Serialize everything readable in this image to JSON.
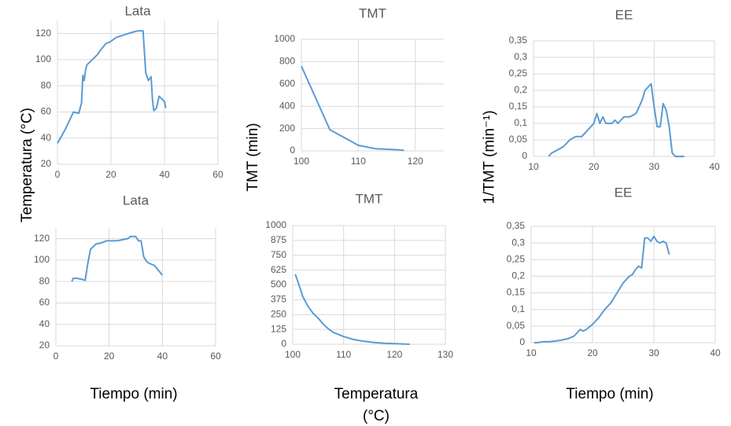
{
  "chart_data": [
    {
      "type": "line",
      "title": "Lata",
      "ylabel": "Temperatura (°C)",
      "color": "#5b9bd5",
      "grid": true,
      "x": [
        0,
        3,
        6,
        8,
        9,
        9.5,
        10,
        10.5,
        11,
        13,
        15,
        16,
        18,
        20,
        22,
        25,
        28,
        30,
        31,
        32,
        33,
        34,
        35,
        35.5,
        36,
        37,
        38,
        40,
        40.5
      ],
      "values": [
        36,
        47,
        60,
        59,
        67,
        88,
        84,
        92,
        96,
        100,
        104,
        107,
        112,
        114,
        117,
        119,
        121,
        122,
        122,
        122,
        90,
        84,
        87,
        70,
        61,
        63,
        72,
        68,
        63
      ],
      "xlim": [
        0,
        60
      ],
      "xticks": [
        0,
        20,
        40,
        60
      ],
      "ylim": [
        20,
        130
      ],
      "yticks": [
        20,
        40,
        60,
        80,
        100,
        120
      ]
    },
    {
      "type": "line",
      "title": "TMT",
      "ylabel": "TMT (min)",
      "color": "#5b9bd5",
      "grid": true,
      "x": [
        100,
        105,
        110,
        113,
        115,
        117,
        118
      ],
      "values": [
        760,
        190,
        50,
        20,
        15,
        10,
        5
      ],
      "xlim": [
        100,
        125
      ],
      "xticks": [
        100,
        110,
        120
      ],
      "ylim": [
        0,
        1000
      ],
      "yticks": [
        0,
        200,
        400,
        600,
        800,
        1000
      ]
    },
    {
      "type": "line",
      "title": "EE",
      "ylabel": "1/TMT (min⁻¹)",
      "color": "#5b9bd5",
      "grid": true,
      "x": [
        12.5,
        13,
        14,
        15,
        16,
        17,
        18,
        19,
        20,
        20.5,
        21,
        21.5,
        22,
        23,
        23.5,
        24,
        25,
        26,
        27,
        28,
        28.5,
        29.5,
        30,
        30.5,
        31,
        31.5,
        32,
        32.5,
        33,
        33.5,
        35
      ],
      "values": [
        0,
        0.01,
        0.02,
        0.03,
        0.05,
        0.06,
        0.06,
        0.08,
        0.1,
        0.13,
        0.1,
        0.12,
        0.1,
        0.1,
        0.11,
        0.1,
        0.12,
        0.12,
        0.13,
        0.17,
        0.2,
        0.22,
        0.15,
        0.09,
        0.09,
        0.16,
        0.14,
        0.09,
        0.01,
        0,
        0
      ],
      "xlim": [
        10,
        40
      ],
      "xticks": [
        10,
        20,
        30,
        40
      ],
      "ylim": [
        0,
        0.35
      ],
      "yticks": [
        0,
        {
          "value": 0.05,
          "label": "0,05"
        },
        {
          "value": 0.1,
          "label": "0,1"
        },
        {
          "value": 0.15,
          "label": "0,15"
        },
        {
          "value": 0.2,
          "label": "0,2"
        },
        {
          "value": 0.25,
          "label": "0,25"
        },
        {
          "value": 0.3,
          "label": "0,3"
        },
        {
          "value": 0.35,
          "label": "0,35"
        }
      ]
    },
    {
      "type": "line",
      "title": "Lata",
      "xlabel": "Tiempo (min)",
      "color": "#5b9bd5",
      "grid": true,
      "x": [
        6,
        6.5,
        8,
        10,
        11,
        12,
        13,
        15,
        17,
        19,
        21,
        23,
        25,
        27,
        28,
        30,
        31,
        32,
        33,
        34,
        35,
        37,
        40
      ],
      "values": [
        80,
        83,
        83,
        82,
        81,
        97,
        110,
        115,
        116,
        118,
        118,
        118,
        119,
        120,
        122,
        122,
        118,
        118,
        103,
        99,
        97,
        95,
        86
      ],
      "xlim": [
        0,
        60
      ],
      "xticks": [
        0,
        20,
        40,
        60
      ],
      "ylim": [
        20,
        130
      ],
      "yticks": [
        20,
        40,
        60,
        80,
        100,
        120
      ]
    },
    {
      "type": "line",
      "title": "TMT",
      "xlabel": "Temperatura (°C)",
      "color": "#5b9bd5",
      "grid": true,
      "x": [
        100.5,
        101,
        102,
        103,
        104,
        105,
        106,
        107,
        108,
        110,
        112,
        114,
        116,
        118,
        120,
        123
      ],
      "values": [
        590,
        530,
        400,
        320,
        260,
        220,
        170,
        130,
        100,
        65,
        40,
        25,
        15,
        8,
        5,
        0
      ],
      "xlim": [
        100,
        130
      ],
      "xticks": [
        100,
        110,
        120,
        130
      ],
      "ylim": [
        0,
        1000
      ],
      "yticks": [
        0,
        125,
        250,
        375,
        500,
        625,
        750,
        875,
        1000
      ]
    },
    {
      "type": "line",
      "title": "EE",
      "xlabel": "Tiempo (min)",
      "color": "#5b9bd5",
      "grid": true,
      "x": [
        10.5,
        11,
        12,
        13,
        14,
        15,
        16,
        17,
        18,
        18.5,
        19,
        20,
        21,
        22,
        23,
        24,
        25,
        26,
        26.5,
        27,
        27.5,
        28,
        28.5,
        29,
        29.5,
        30,
        30.5,
        31,
        31.5,
        32,
        32.5
      ],
      "values": [
        0,
        0,
        0.003,
        0.003,
        0.005,
        0.008,
        0.012,
        0.02,
        0.04,
        0.035,
        0.04,
        0.055,
        0.075,
        0.1,
        0.12,
        0.15,
        0.18,
        0.2,
        0.205,
        0.22,
        0.23,
        0.225,
        0.315,
        0.315,
        0.305,
        0.32,
        0.305,
        0.3,
        0.305,
        0.3,
        0.265
      ],
      "xlim": [
        10,
        40
      ],
      "xticks": [
        10,
        20,
        30,
        40
      ],
      "ylim": [
        0,
        0.35
      ],
      "yticks": [
        0,
        {
          "value": 0.05,
          "label": "0,05"
        },
        {
          "value": 0.1,
          "label": "0,1"
        },
        {
          "value": 0.15,
          "label": "0,15"
        },
        {
          "value": 0.2,
          "label": "0,2"
        },
        {
          "value": 0.25,
          "label": "0,25"
        },
        {
          "value": 0.3,
          "label": "0,3"
        },
        {
          "value": 0.35,
          "label": "0,35"
        }
      ]
    }
  ]
}
